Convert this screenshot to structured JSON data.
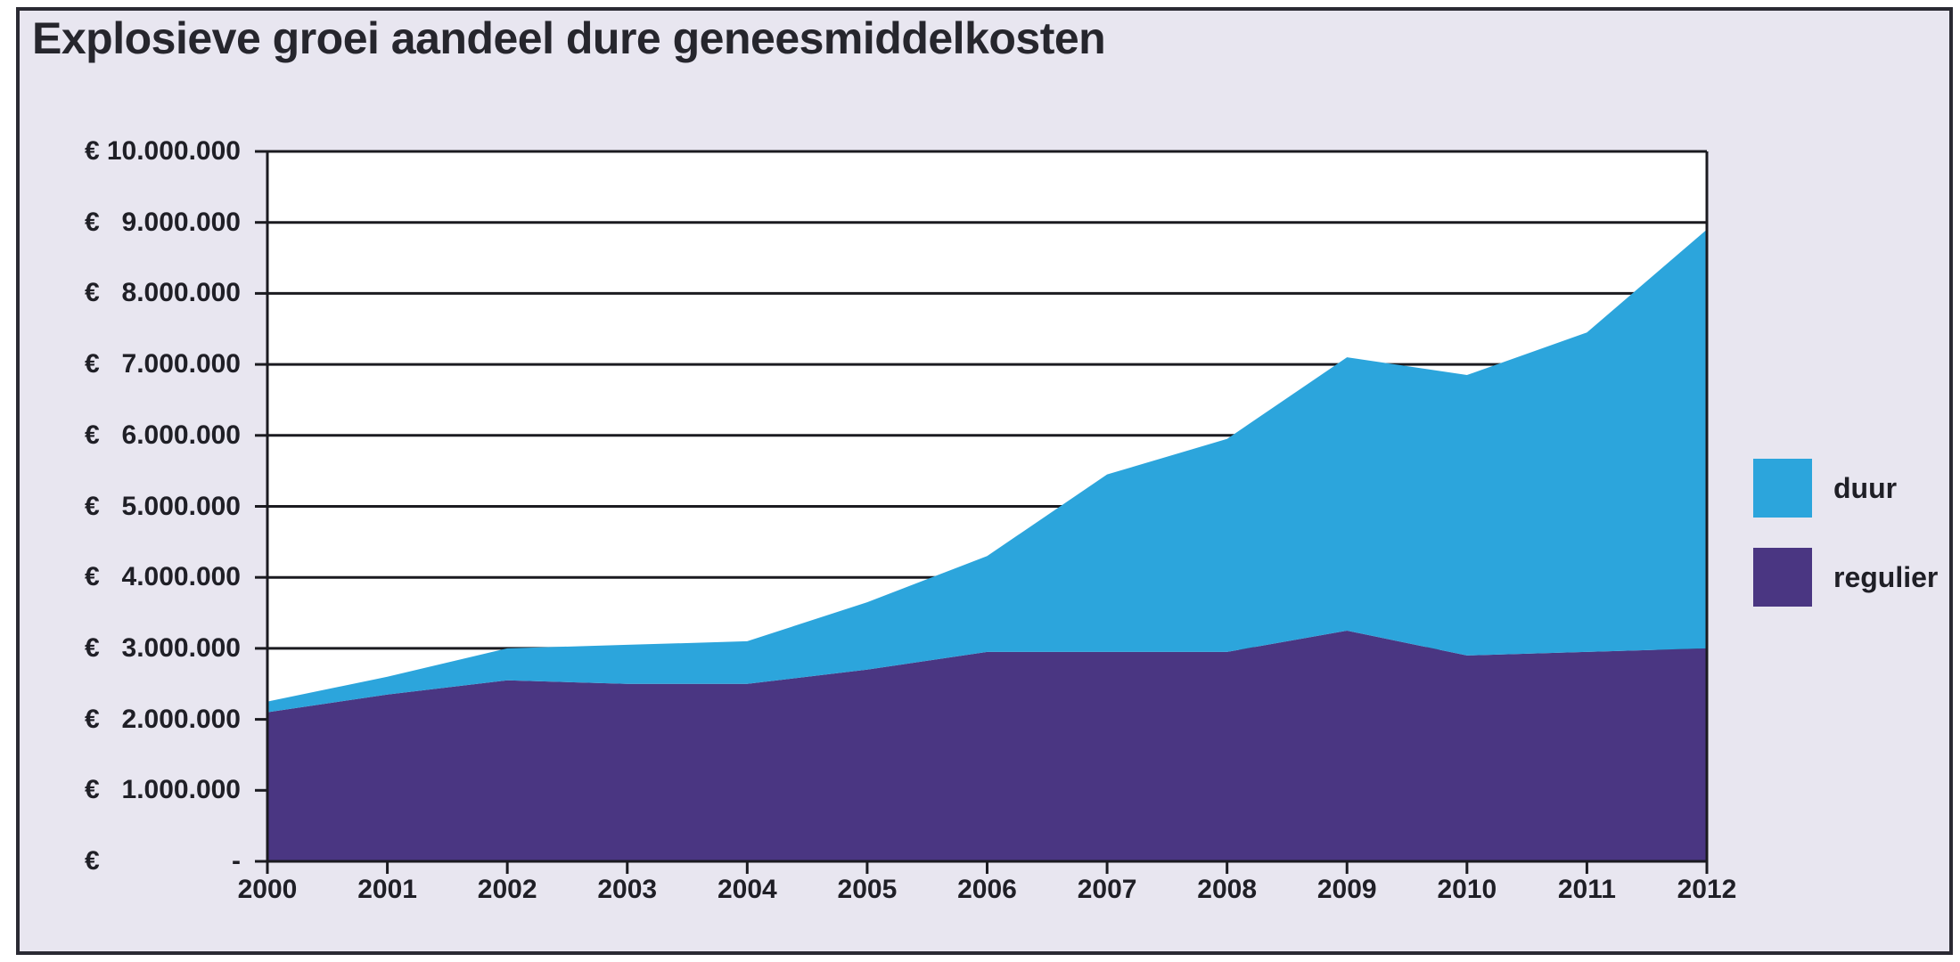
{
  "title": "Explosieve groei aandeel dure geneesmiddelkosten",
  "colors": {
    "duur": "#2CA5DC",
    "regulier": "#4A3682",
    "panel_bg": "#E8E6F0",
    "plot_bg": "#FFFFFF",
    "line": "#1B1B20",
    "text": "#1F1F26",
    "border": "#2A2A33"
  },
  "legend": [
    {
      "label": "duur",
      "color": "#2CA5DC"
    },
    {
      "label": "regulier",
      "color": "#4A3682"
    }
  ],
  "y_axis": {
    "currency_symbol": "€",
    "ticks": [
      {
        "value": 10000000,
        "label": "10.000.000"
      },
      {
        "value": 9000000,
        "label": "9.000.000"
      },
      {
        "value": 8000000,
        "label": "8.000.000"
      },
      {
        "value": 7000000,
        "label": "7.000.000"
      },
      {
        "value": 6000000,
        "label": "6.000.000"
      },
      {
        "value": 5000000,
        "label": "5.000.000"
      },
      {
        "value": 4000000,
        "label": "4.000.000"
      },
      {
        "value": 3000000,
        "label": "3.000.000"
      },
      {
        "value": 2000000,
        "label": "2.000.000"
      },
      {
        "value": 1000000,
        "label": "1.000.000"
      },
      {
        "value": 0,
        "label": "-"
      }
    ]
  },
  "chart_data": {
    "type": "area",
    "stacked": true,
    "title": "Explosieve groei aandeel dure geneesmiddelkosten",
    "categories": [
      2000,
      2001,
      2002,
      2003,
      2004,
      2005,
      2006,
      2007,
      2008,
      2009,
      2010,
      2011,
      2012
    ],
    "series": [
      {
        "name": "regulier",
        "color": "#4A3682",
        "values": [
          2100000,
          2350000,
          2550000,
          2500000,
          2500000,
          2700000,
          2950000,
          2950000,
          2950000,
          3250000,
          2900000,
          2950000,
          3000000
        ]
      },
      {
        "name": "duur",
        "color": "#2CA5DC",
        "values": [
          150000,
          250000,
          450000,
          550000,
          600000,
          950000,
          1350000,
          2500000,
          3000000,
          3850000,
          3950000,
          4500000,
          5900000
        ]
      }
    ],
    "totals": [
      2250000,
      2600000,
      3000000,
      3050000,
      3100000,
      3650000,
      4300000,
      5450000,
      5950000,
      7100000,
      6850000,
      7450000,
      8900000
    ],
    "ylabel": "€",
    "ylim": [
      0,
      10000000
    ],
    "y_major_unit": 1000000,
    "grid": true,
    "legend_position": "right"
  }
}
